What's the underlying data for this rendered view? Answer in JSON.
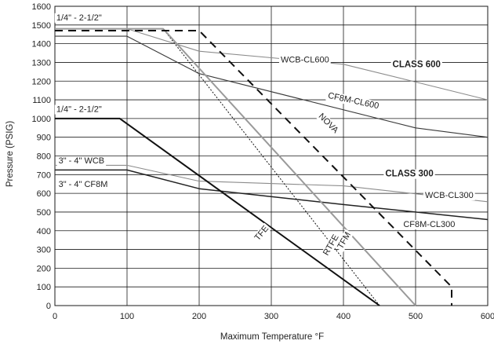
{
  "chart_data": {
    "type": "line",
    "xlabel": "Maximum Temperature °F",
    "ylabel": "Pressure (PSIG)",
    "xlim": [
      0,
      600
    ],
    "ylim": [
      0,
      1600
    ],
    "xticks": [
      0,
      100,
      200,
      300,
      400,
      500,
      600
    ],
    "xtick_labels": [
      "0",
      "100",
      "200",
      "300",
      "400",
      "500",
      "600"
    ],
    "yticks": [
      0,
      100,
      200,
      300,
      400,
      500,
      600,
      700,
      800,
      900,
      1000,
      1100,
      1200,
      1300,
      1400,
      1500,
      1600
    ],
    "ytick_labels": [
      "0",
      "100",
      "200",
      "300",
      "400",
      "500",
      "600",
      "700",
      "800",
      "900",
      "1000",
      "1100",
      "1200",
      "1300",
      "1400",
      "1500",
      "1600"
    ],
    "grid": true,
    "series": [
      {
        "name": "WCB-CL600",
        "color": "#8c8c8c",
        "style": "solid",
        "x": [
          0,
          100,
          200,
          400,
          500,
          600
        ],
        "y": [
          1480,
          1480,
          1360,
          1290,
          1195,
          1100
        ]
      },
      {
        "name": "CF8M-CL600",
        "color": "#3a3a3a",
        "style": "solid",
        "x": [
          0,
          100,
          200,
          500,
          600
        ],
        "y": [
          1440,
          1440,
          1240,
          950,
          900
        ]
      },
      {
        "name": "WCB-CL300",
        "color": "#8c8c8c",
        "style": "solid",
        "x": [
          0,
          100,
          200,
          400,
          600
        ],
        "y": [
          750,
          750,
          665,
          640,
          555
        ]
      },
      {
        "name": "CF8M-CL300",
        "color": "#222222",
        "style": "solid",
        "x": [
          0,
          100,
          200,
          400,
          600
        ],
        "y": [
          725,
          725,
          625,
          540,
          460
        ]
      },
      {
        "name": "TFE",
        "color": "#111111",
        "style": "solid",
        "x": [
          0,
          90,
          450
        ],
        "y": [
          1000,
          1000,
          0
        ]
      },
      {
        "name": "RTFE",
        "color": "#111111",
        "style": "dotted",
        "x": [
          0,
          150,
          450
        ],
        "y": [
          1480,
          1480,
          0
        ]
      },
      {
        "name": "TFM",
        "color": "#9a9a9a",
        "style": "solid",
        "x": [
          0,
          150,
          500
        ],
        "y": [
          1480,
          1480,
          0
        ]
      },
      {
        "name": "NOVA",
        "color": "#111111",
        "style": "dashed",
        "x": [
          0,
          200,
          550,
          550
        ],
        "y": [
          1470,
          1470,
          100,
          0
        ]
      }
    ],
    "annotations": [
      {
        "text": "1/4\" - 2-1/2\"",
        "x": 2,
        "y": 1525,
        "bold": false,
        "rotate": 0
      },
      {
        "text": "1/4\" - 2-1/2\"",
        "x": 2,
        "y": 1035,
        "bold": false,
        "rotate": 0
      },
      {
        "text": "3\" - 4\" WCB",
        "x": 5,
        "y": 760,
        "bold": false,
        "rotate": 0
      },
      {
        "text": "3\" - 4\" CF8M",
        "x": 5,
        "y": 635,
        "bold": false,
        "rotate": 0
      },
      {
        "text": "WCB-CL600",
        "x": 313,
        "y": 1300,
        "bold": false,
        "rotate": 0
      },
      {
        "text": "CLASS 600",
        "x": 468,
        "y": 1275,
        "bold": true,
        "rotate": 0
      },
      {
        "text": "CF8M-CL600",
        "x": 378,
        "y": 1110,
        "bold": false,
        "rotate": 12
      },
      {
        "text": "NOVA",
        "x": 365,
        "y": 1010,
        "bold": false,
        "rotate": 45
      },
      {
        "text": "CLASS 300",
        "x": 458,
        "y": 690,
        "bold": true,
        "rotate": 0
      },
      {
        "text": "WCB-CL300",
        "x": 513,
        "y": 575,
        "bold": false,
        "rotate": 0
      },
      {
        "text": "CF8M-CL300",
        "x": 483,
        "y": 420,
        "bold": false,
        "rotate": 0
      },
      {
        "text": "TFM",
        "x": 398,
        "y": 300,
        "bold": false,
        "rotate": -60
      },
      {
        "text": "RTFE",
        "x": 378,
        "y": 265,
        "bold": false,
        "rotate": -60
      },
      {
        "text": "TFE",
        "x": 282,
        "y": 345,
        "bold": false,
        "rotate": -50
      }
    ]
  }
}
